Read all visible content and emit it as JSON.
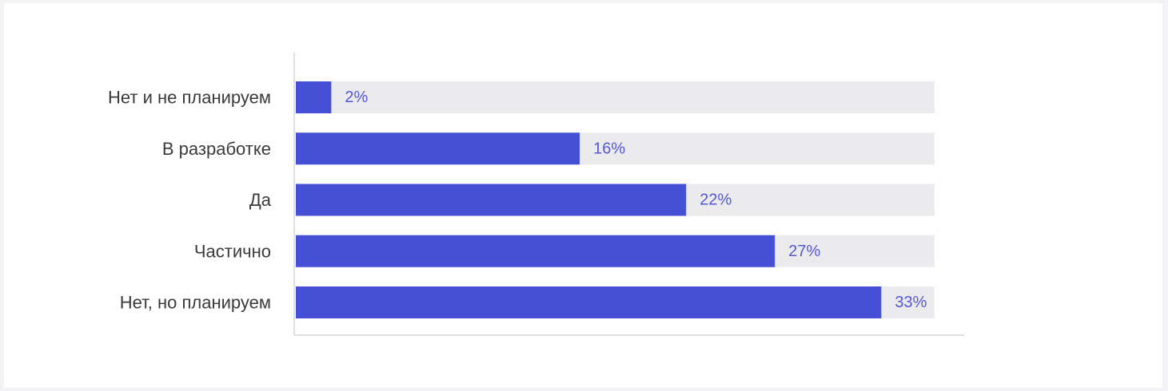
{
  "colors": {
    "bar": "#4650d6",
    "track": "#ebebed",
    "axis": "#e0e0e2",
    "value_label": "#5558d6",
    "category_label": "#3a3a3a"
  },
  "chart_data": {
    "type": "bar",
    "orientation": "horizontal",
    "categories": [
      "Нет и не планируем",
      "В разработке",
      "Да",
      "Частично",
      "Нет, но планируем"
    ],
    "values": [
      2,
      16,
      22,
      27,
      33
    ],
    "value_labels": [
      "2%",
      "16%",
      "22%",
      "27%",
      "33%"
    ],
    "xlim": [
      0,
      36
    ],
    "unit": "%",
    "grid": false,
    "legend": "none"
  }
}
